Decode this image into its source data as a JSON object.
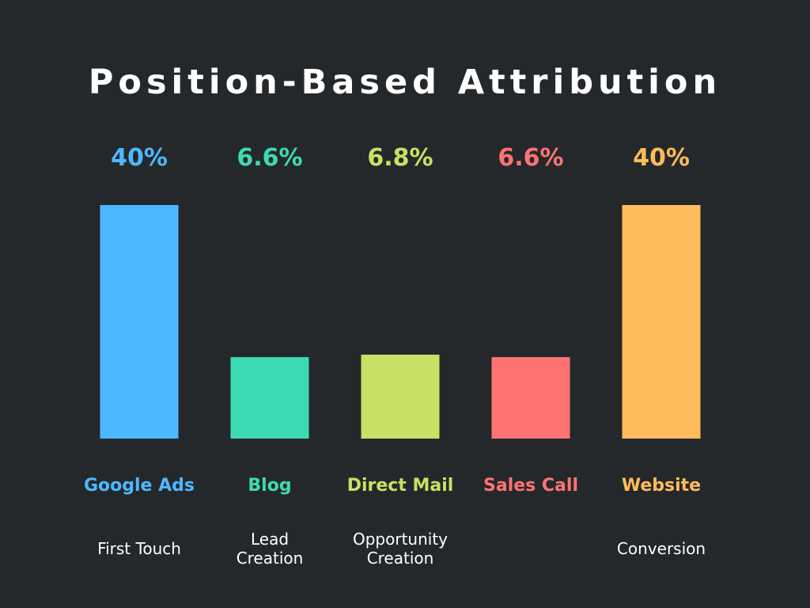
{
  "chart_data": {
    "type": "bar",
    "title": "Position-Based Attribution",
    "categories": [
      "Google Ads",
      "Blog",
      "Direct Mail",
      "Sales Call",
      "Website"
    ],
    "values": [
      40,
      6.6,
      6.8,
      6.6,
      40
    ],
    "value_labels": [
      "40%",
      "6.6%",
      "6.8%",
      "6.6%",
      "40%"
    ],
    "stage_labels": [
      [
        "First Touch"
      ],
      [
        "Lead",
        "Creation"
      ],
      [
        "Opportunity",
        "Creation"
      ],
      [],
      [
        "Conversion"
      ]
    ],
    "colors": [
      "#4db8ff",
      "#3ddbb4",
      "#c8e164",
      "#ff7373",
      "#ffbb5c"
    ],
    "label_color": "#ffffff",
    "grid": false,
    "legend": "none"
  }
}
